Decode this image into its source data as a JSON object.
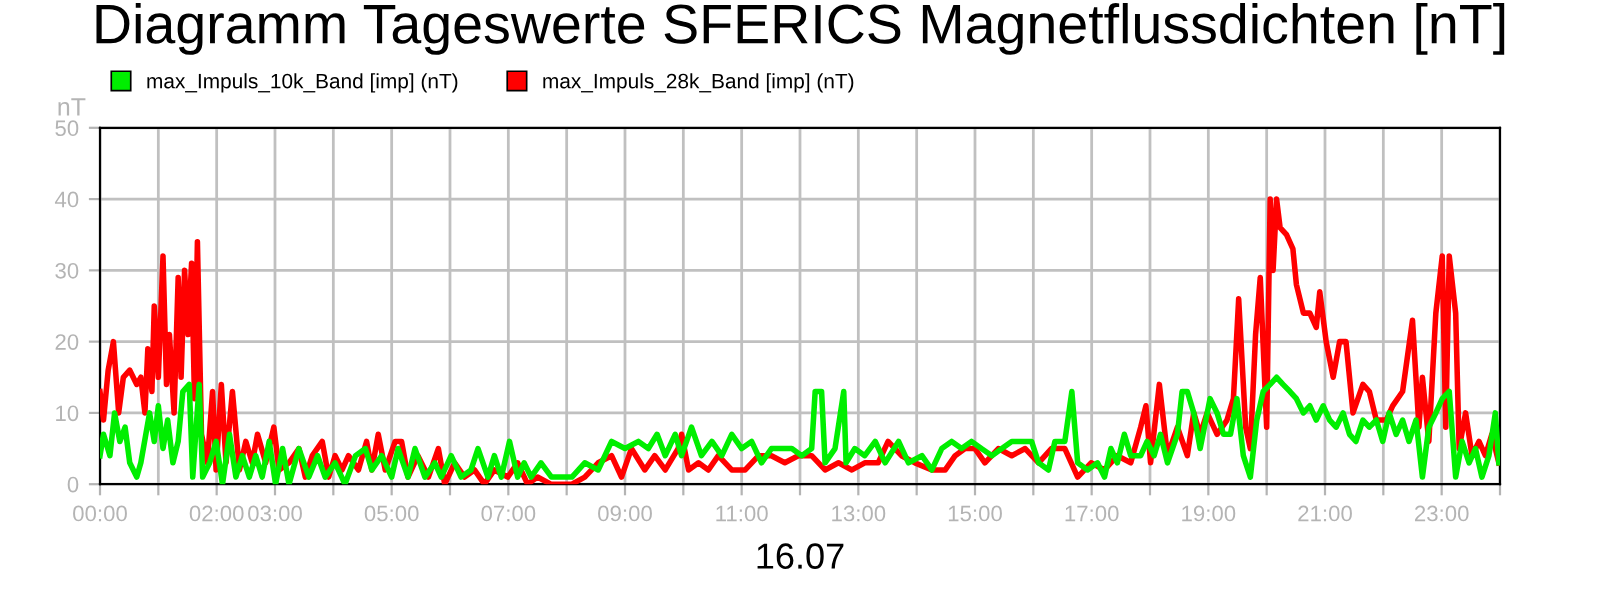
{
  "chart_data": {
    "type": "line",
    "title": "Diagramm Tageswerte SFERICS Magnetflussdichten [nT]",
    "xlabel": "16.07",
    "ylabel": "nT",
    "xlim": [
      0,
      24
    ],
    "ylim": [
      0,
      50
    ],
    "yticks": [
      0,
      10,
      20,
      30,
      40,
      50
    ],
    "xticks": [
      {
        "value": 0,
        "label": "00:00"
      },
      {
        "value": 1,
        "label": null
      },
      {
        "value": 2,
        "label": "02:00"
      },
      {
        "value": 3,
        "label": "03:00"
      },
      {
        "value": 4,
        "label": null
      },
      {
        "value": 5,
        "label": "05:00"
      },
      {
        "value": 6,
        "label": null
      },
      {
        "value": 7,
        "label": "07:00"
      },
      {
        "value": 8,
        "label": null
      },
      {
        "value": 9,
        "label": "09:00"
      },
      {
        "value": 10,
        "label": null
      },
      {
        "value": 11,
        "label": "11:00"
      },
      {
        "value": 12,
        "label": null
      },
      {
        "value": 13,
        "label": "13:00"
      },
      {
        "value": 14,
        "label": null
      },
      {
        "value": 15,
        "label": "15:00"
      },
      {
        "value": 16,
        "label": null
      },
      {
        "value": 17,
        "label": "17:00"
      },
      {
        "value": 18,
        "label": null
      },
      {
        "value": 19,
        "label": "19:00"
      },
      {
        "value": 20,
        "label": null
      },
      {
        "value": 21,
        "label": "21:00"
      },
      {
        "value": 22,
        "label": null
      },
      {
        "value": 23,
        "label": "23:00"
      },
      {
        "value": 24,
        "label": null
      }
    ],
    "grid": true,
    "legend": "top left",
    "marker": "none",
    "line_style": "solid",
    "series": [
      {
        "name": "max_Impuls_10k_Band [imp] (nT)",
        "color": "#00ee00",
        "x": [
          0,
          0.06,
          0.17,
          0.25,
          0.34,
          0.43,
          0.51,
          0.63,
          0.7,
          0.85,
          0.93,
          1.0,
          1.08,
          1.16,
          1.25,
          1.34,
          1.42,
          1.53,
          1.59,
          1.7,
          1.76,
          1.88,
          1.99,
          2.1,
          2.22,
          2.33,
          2.44,
          2.56,
          2.67,
          2.78,
          2.9,
          3.01,
          3.13,
          3.24,
          3.41,
          3.58,
          3.73,
          3.86,
          4.03,
          4.2,
          4.38,
          4.55,
          4.66,
          4.83,
          5.0,
          5.11,
          5.28,
          5.4,
          5.57,
          5.74,
          5.85,
          6.02,
          6.19,
          6.36,
          6.48,
          6.65,
          6.76,
          6.88,
          7.02,
          7.16,
          7.27,
          7.39,
          7.56,
          7.74,
          8.09,
          8.31,
          8.54,
          8.77,
          9.0,
          9.23,
          9.4,
          9.55,
          9.69,
          9.86,
          9.97,
          10.14,
          10.31,
          10.49,
          10.66,
          10.83,
          11.0,
          11.17,
          11.34,
          11.51,
          11.69,
          11.86,
          12.03,
          12.2,
          12.26,
          12.37,
          12.43,
          12.6,
          12.75,
          12.79,
          12.94,
          13.11,
          13.29,
          13.46,
          13.69,
          13.86,
          14.09,
          14.26,
          14.43,
          14.6,
          14.77,
          14.94,
          15.11,
          15.29,
          15.46,
          15.63,
          15.8,
          15.97,
          16.09,
          16.26,
          16.37,
          16.54,
          16.66,
          16.76,
          16.93,
          17.1,
          17.22,
          17.33,
          17.44,
          17.56,
          17.67,
          17.84,
          17.95,
          18.07,
          18.18,
          18.3,
          18.47,
          18.55,
          18.64,
          18.75,
          18.86,
          19.03,
          19.15,
          19.26,
          19.38,
          19.49,
          19.6,
          19.72,
          19.83,
          19.94,
          20.06,
          20.17,
          20.28,
          20.4,
          20.51,
          20.63,
          20.74,
          20.85,
          20.97,
          21.08,
          21.19,
          21.31,
          21.42,
          21.53,
          21.65,
          21.76,
          21.88,
          21.99,
          22.1,
          22.22,
          22.33,
          22.44,
          22.56,
          22.67,
          22.78,
          22.9,
          23.01,
          23.13,
          23.24,
          23.35,
          23.47,
          23.58,
          23.69,
          23.81,
          23.92,
          23.98
        ],
        "values": [
          4,
          7,
          4,
          10,
          6,
          8,
          3,
          1,
          3,
          10,
          6,
          11,
          5,
          9,
          3,
          6,
          13,
          14,
          1,
          14,
          1,
          3,
          6,
          0,
          7,
          1,
          4,
          1,
          4,
          1,
          6,
          0,
          5,
          0,
          5,
          1,
          4,
          1,
          3,
          0,
          4,
          5,
          2,
          4,
          1,
          5,
          1,
          5,
          1,
          3,
          1,
          4,
          1,
          2,
          5,
          1,
          4,
          1,
          6,
          1,
          3,
          1,
          3,
          1,
          1,
          3,
          2,
          6,
          5,
          6,
          5,
          7,
          4,
          7,
          4,
          8,
          4,
          6,
          4,
          7,
          5,
          6,
          3,
          5,
          5,
          5,
          4,
          5,
          13,
          13,
          3,
          5,
          13,
          3,
          5,
          4,
          6,
          3,
          6,
          3,
          4,
          2,
          5,
          6,
          5,
          6,
          5,
          4,
          5,
          6,
          6,
          6,
          3,
          2,
          6,
          6,
          13,
          3,
          2,
          3,
          1,
          5,
          3,
          7,
          4,
          4,
          6,
          4,
          7,
          3,
          7,
          13,
          13,
          10,
          5,
          12,
          10,
          7,
          7,
          12,
          4,
          1,
          9,
          13,
          14,
          15,
          14,
          13,
          12,
          10,
          11,
          9,
          11,
          9,
          8,
          10,
          7,
          6,
          9,
          8,
          9,
          6,
          10,
          7,
          9,
          6,
          9,
          1,
          8,
          10,
          12,
          13,
          1,
          6,
          3,
          5,
          1,
          4,
          10,
          3
        ]
      },
      {
        "name": "max_Impuls_28k_Band [imp] (nT)",
        "color": "#ff0000",
        "x": [
          0,
          0.06,
          0.14,
          0.23,
          0.32,
          0.4,
          0.51,
          0.63,
          0.7,
          0.77,
          0.82,
          0.89,
          0.93,
          1.0,
          1.08,
          1.14,
          1.19,
          1.27,
          1.34,
          1.39,
          1.45,
          1.51,
          1.57,
          1.62,
          1.67,
          1.74,
          1.84,
          1.93,
          1.99,
          2.08,
          2.16,
          2.27,
          2.39,
          2.5,
          2.61,
          2.7,
          2.84,
          2.98,
          3.07,
          3.24,
          3.41,
          3.52,
          3.64,
          3.81,
          3.92,
          4.03,
          4.15,
          4.26,
          4.43,
          4.57,
          4.66,
          4.77,
          4.89,
          5.06,
          5.17,
          5.28,
          5.45,
          5.63,
          5.8,
          5.91,
          6.08,
          6.25,
          6.42,
          6.59,
          6.76,
          6.99,
          7.16,
          7.33,
          7.5,
          7.73,
          8.09,
          8.31,
          8.54,
          8.77,
          8.94,
          9.11,
          9.34,
          9.51,
          9.69,
          9.91,
          9.97,
          10.09,
          10.26,
          10.43,
          10.6,
          10.83,
          11.06,
          11.29,
          11.51,
          11.74,
          11.97,
          12.2,
          12.43,
          12.66,
          12.89,
          13.11,
          13.34,
          13.51,
          13.74,
          13.97,
          14.26,
          14.49,
          14.66,
          14.83,
          15.0,
          15.17,
          15.4,
          15.63,
          15.86,
          16.09,
          16.31,
          16.54,
          16.76,
          16.99,
          17.22,
          17.44,
          17.67,
          17.84,
          17.93,
          18.01,
          18.16,
          18.3,
          18.47,
          18.64,
          18.75,
          18.86,
          18.98,
          19.15,
          19.32,
          19.43,
          19.52,
          19.64,
          19.72,
          19.81,
          19.89,
          20.0,
          20.06,
          20.11,
          20.17,
          20.23,
          20.34,
          20.45,
          20.51,
          20.63,
          20.74,
          20.85,
          20.91,
          21.02,
          21.14,
          21.25,
          21.36,
          21.48,
          21.65,
          21.76,
          21.88,
          22.05,
          22.16,
          22.33,
          22.5,
          22.61,
          22.67,
          22.78,
          22.9,
          23.01,
          23.07,
          23.13,
          23.24,
          23.3,
          23.41,
          23.52,
          23.64,
          23.75,
          23.86,
          23.98
        ],
        "values": [
          13,
          9,
          16,
          20,
          10,
          15,
          16,
          14,
          15,
          10,
          19,
          13,
          25,
          15,
          32,
          14,
          21,
          10,
          29,
          15,
          30,
          21,
          31,
          12,
          34,
          7,
          3,
          13,
          2,
          14,
          3,
          13,
          2,
          6,
          3,
          7,
          3,
          8,
          2,
          3,
          5,
          1,
          4,
          6,
          1,
          4,
          2,
          4,
          2,
          6,
          2,
          7,
          2,
          6,
          6,
          1,
          4,
          1,
          5,
          0,
          3,
          1,
          2,
          0,
          2,
          1,
          3,
          0,
          1,
          0,
          0,
          1,
          3,
          4,
          1,
          5,
          2,
          4,
          2,
          5,
          7,
          2,
          3,
          2,
          4,
          2,
          2,
          4,
          4,
          3,
          4,
          4,
          2,
          3,
          2,
          3,
          3,
          6,
          4,
          3,
          2,
          2,
          4,
          5,
          5,
          3,
          5,
          4,
          5,
          3,
          5,
          5,
          1,
          3,
          2,
          4,
          3,
          8,
          11,
          3,
          14,
          4,
          8,
          4,
          10,
          7,
          10,
          7,
          9,
          12,
          26,
          8,
          5,
          21,
          29,
          8,
          40,
          30,
          40,
          36,
          35,
          33,
          28,
          24,
          24,
          22,
          27,
          20,
          15,
          20,
          20,
          10,
          14,
          13,
          9,
          9,
          11,
          13,
          23,
          8,
          15,
          6,
          24,
          32,
          8,
          32,
          24,
          5,
          10,
          4,
          6,
          4,
          7,
          3
        ]
      }
    ]
  }
}
